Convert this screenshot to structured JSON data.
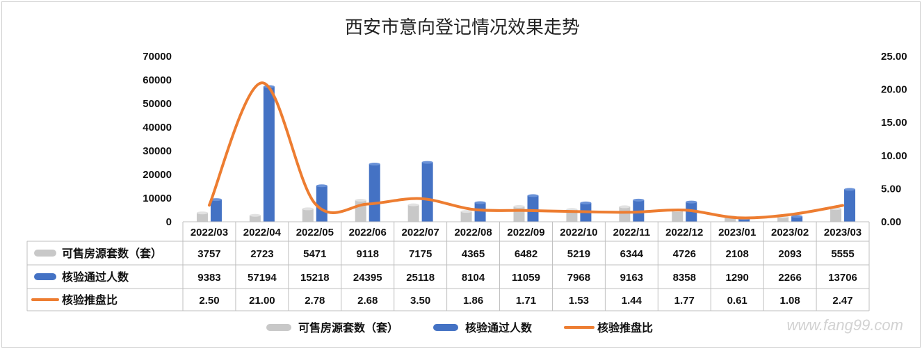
{
  "chart_data": {
    "type": "bar",
    "title": "西安市意向登记情况效果走势",
    "categories": [
      "2022/03",
      "2022/04",
      "2022/05",
      "2022/06",
      "2022/07",
      "2022/08",
      "2022/09",
      "2022/10",
      "2022/11",
      "2022/12",
      "2023/01",
      "2023/02",
      "2023/03"
    ],
    "series": [
      {
        "name": "可售房源套数（套）",
        "type": "bar",
        "axis": "left",
        "color": "#c8c8c8",
        "values": [
          3757,
          2723,
          5471,
          9118,
          7175,
          4365,
          6482,
          5219,
          6344,
          4726,
          2108,
          2093,
          5555
        ]
      },
      {
        "name": "核验通过人数",
        "type": "bar",
        "axis": "left",
        "color": "#4472c4",
        "values": [
          9383,
          57194,
          15218,
          24395,
          25118,
          8104,
          11059,
          7968,
          9163,
          8358,
          1290,
          2266,
          13706
        ]
      },
      {
        "name": "核验推盘比",
        "type": "line",
        "axis": "right",
        "color": "#ed7d31",
        "values": [
          2.5,
          21.0,
          2.78,
          2.68,
          3.5,
          1.86,
          1.71,
          1.53,
          1.44,
          1.77,
          0.61,
          1.08,
          2.47
        ]
      }
    ],
    "ylim_left": [
      0,
      70000
    ],
    "yticks_left": [
      "70000",
      "60000",
      "50000",
      "40000",
      "30000",
      "20000",
      "10000",
      "0"
    ],
    "ylim_right": [
      0,
      25
    ],
    "yticks_right": [
      "25.00",
      "20.00",
      "15.00",
      "10.00",
      "5.00",
      "0.00"
    ],
    "table_values": [
      [
        "3757",
        "2723",
        "5471",
        "9118",
        "7175",
        "4365",
        "6482",
        "5219",
        "6344",
        "4726",
        "2108",
        "2093",
        "5555"
      ],
      [
        "9383",
        "57194",
        "15218",
        "24395",
        "25118",
        "8104",
        "11059",
        "7968",
        "9163",
        "8358",
        "1290",
        "2266",
        "13706"
      ],
      [
        "2.50",
        "21.00",
        "2.78",
        "2.68",
        "3.50",
        "1.86",
        "1.71",
        "1.53",
        "1.44",
        "1.77",
        "0.61",
        "1.08",
        "2.47"
      ]
    ],
    "legend_position": "bottom",
    "grid": false
  },
  "watermark": "www.fang99.com"
}
